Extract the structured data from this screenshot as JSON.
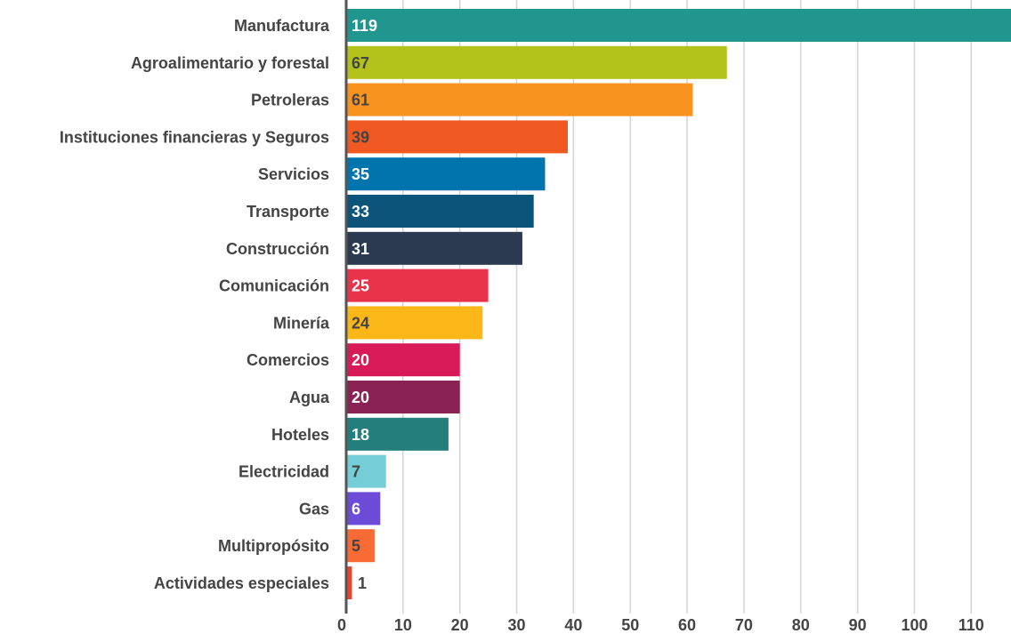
{
  "chart_data": {
    "type": "bar",
    "orientation": "horizontal",
    "categories": [
      "Manufactura",
      "Agroalimentario y forestal",
      "Petroleras",
      "Instituciones financieras y Seguros",
      "Servicios",
      "Transporte",
      "Construcción",
      "Comunicación",
      "Minería",
      "Comercios",
      "Agua",
      "Hoteles",
      "Electricidad",
      "Gas",
      "Multipropósito",
      "Actividades especiales"
    ],
    "values": [
      119,
      67,
      61,
      39,
      35,
      33,
      31,
      25,
      24,
      20,
      20,
      18,
      7,
      6,
      5,
      1
    ],
    "colors": [
      "#21968f",
      "#b3c21b",
      "#f7931e",
      "#f05a22",
      "#0075ad",
      "#0c5479",
      "#2b3a50",
      "#e8334a",
      "#fbb617",
      "#d91a58",
      "#8a2253",
      "#237e7c",
      "#75cdd8",
      "#6c4bd6",
      "#f96a35",
      "#e8452f"
    ],
    "value_label_colors": [
      "#ffffff",
      "#444444",
      "#444444",
      "#444444",
      "#ffffff",
      "#ffffff",
      "#ffffff",
      "#ffffff",
      "#444444",
      "#ffffff",
      "#ffffff",
      "#ffffff",
      "#444444",
      "#ffffff",
      "#444444",
      "#444444"
    ],
    "value_labels": [
      "119",
      "67",
      "61",
      "39",
      "35",
      "33",
      "31",
      "25",
      "24",
      "20",
      "20",
      "18",
      "7",
      "6",
      "5",
      "1"
    ],
    "xticks": [
      0,
      10,
      20,
      30,
      40,
      50,
      60,
      70,
      80,
      90,
      100,
      110
    ],
    "xtick_labels": [
      "0",
      "10",
      "20",
      "30",
      "40",
      "50",
      "60",
      "70",
      "80",
      "90",
      "100",
      "110"
    ],
    "xlim": [
      0,
      117
    ],
    "grid": true,
    "title": "",
    "xlabel": "",
    "ylabel": ""
  }
}
